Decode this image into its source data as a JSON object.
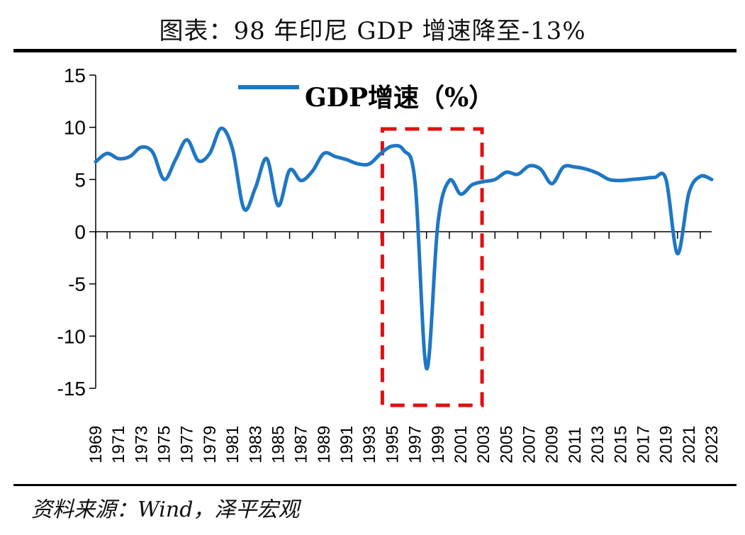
{
  "title": "图表：98 年印尼 GDP 增速降至-13%",
  "source": "资料来源：Wind，泽平宏观",
  "colors": {
    "line": "#1f77c4",
    "highlight": "#e01010",
    "axis": "#000000"
  },
  "chart_data": {
    "type": "line",
    "x": [
      1969,
      1970,
      1971,
      1972,
      1973,
      1974,
      1975,
      1976,
      1977,
      1978,
      1979,
      1980,
      1981,
      1982,
      1983,
      1984,
      1985,
      1986,
      1987,
      1988,
      1989,
      1990,
      1991,
      1992,
      1993,
      1994,
      1995,
      1996,
      1997,
      1998,
      1999,
      2000,
      2001,
      2002,
      2003,
      2004,
      2005,
      2006,
      2007,
      2008,
      2009,
      2010,
      2011,
      2012,
      2013,
      2014,
      2015,
      2016,
      2017,
      2018,
      2019,
      2020,
      2021,
      2022,
      2023
    ],
    "series": [
      {
        "name": "GDP增速（%）",
        "values": [
          6.7,
          7.5,
          7.0,
          7.2,
          8.1,
          7.6,
          5.0,
          6.9,
          8.8,
          6.8,
          7.5,
          9.9,
          7.9,
          2.2,
          4.2,
          7.0,
          2.5,
          5.9,
          4.9,
          5.8,
          7.5,
          7.2,
          6.9,
          6.5,
          6.5,
          7.5,
          8.2,
          7.8,
          4.7,
          -13.1,
          0.8,
          4.9,
          3.6,
          4.5,
          4.8,
          5.0,
          5.7,
          5.5,
          6.3,
          6.0,
          4.6,
          6.2,
          6.2,
          6.0,
          5.6,
          5.0,
          4.9,
          5.0,
          5.1,
          5.2,
          5.0,
          -2.1,
          3.7,
          5.3,
          5.0
        ]
      }
    ],
    "x_tick_labels": [
      "1969",
      "1971",
      "1973",
      "1975",
      "1977",
      "1979",
      "1981",
      "1983",
      "1985",
      "1987",
      "1989",
      "1991",
      "1993",
      "1995",
      "1997",
      "1999",
      "2001",
      "2003",
      "2005",
      "2007",
      "2009",
      "2011",
      "2013",
      "2015",
      "2017",
      "2019",
      "2021",
      "2023"
    ],
    "y_tick_labels": [
      "15",
      "10",
      "5",
      "0",
      "-5",
      "-10",
      "-15"
    ],
    "ylim": [
      -15,
      15
    ],
    "highlight_range": [
      1995,
      2002
    ],
    "legend_position": "top-center",
    "grid": false
  }
}
